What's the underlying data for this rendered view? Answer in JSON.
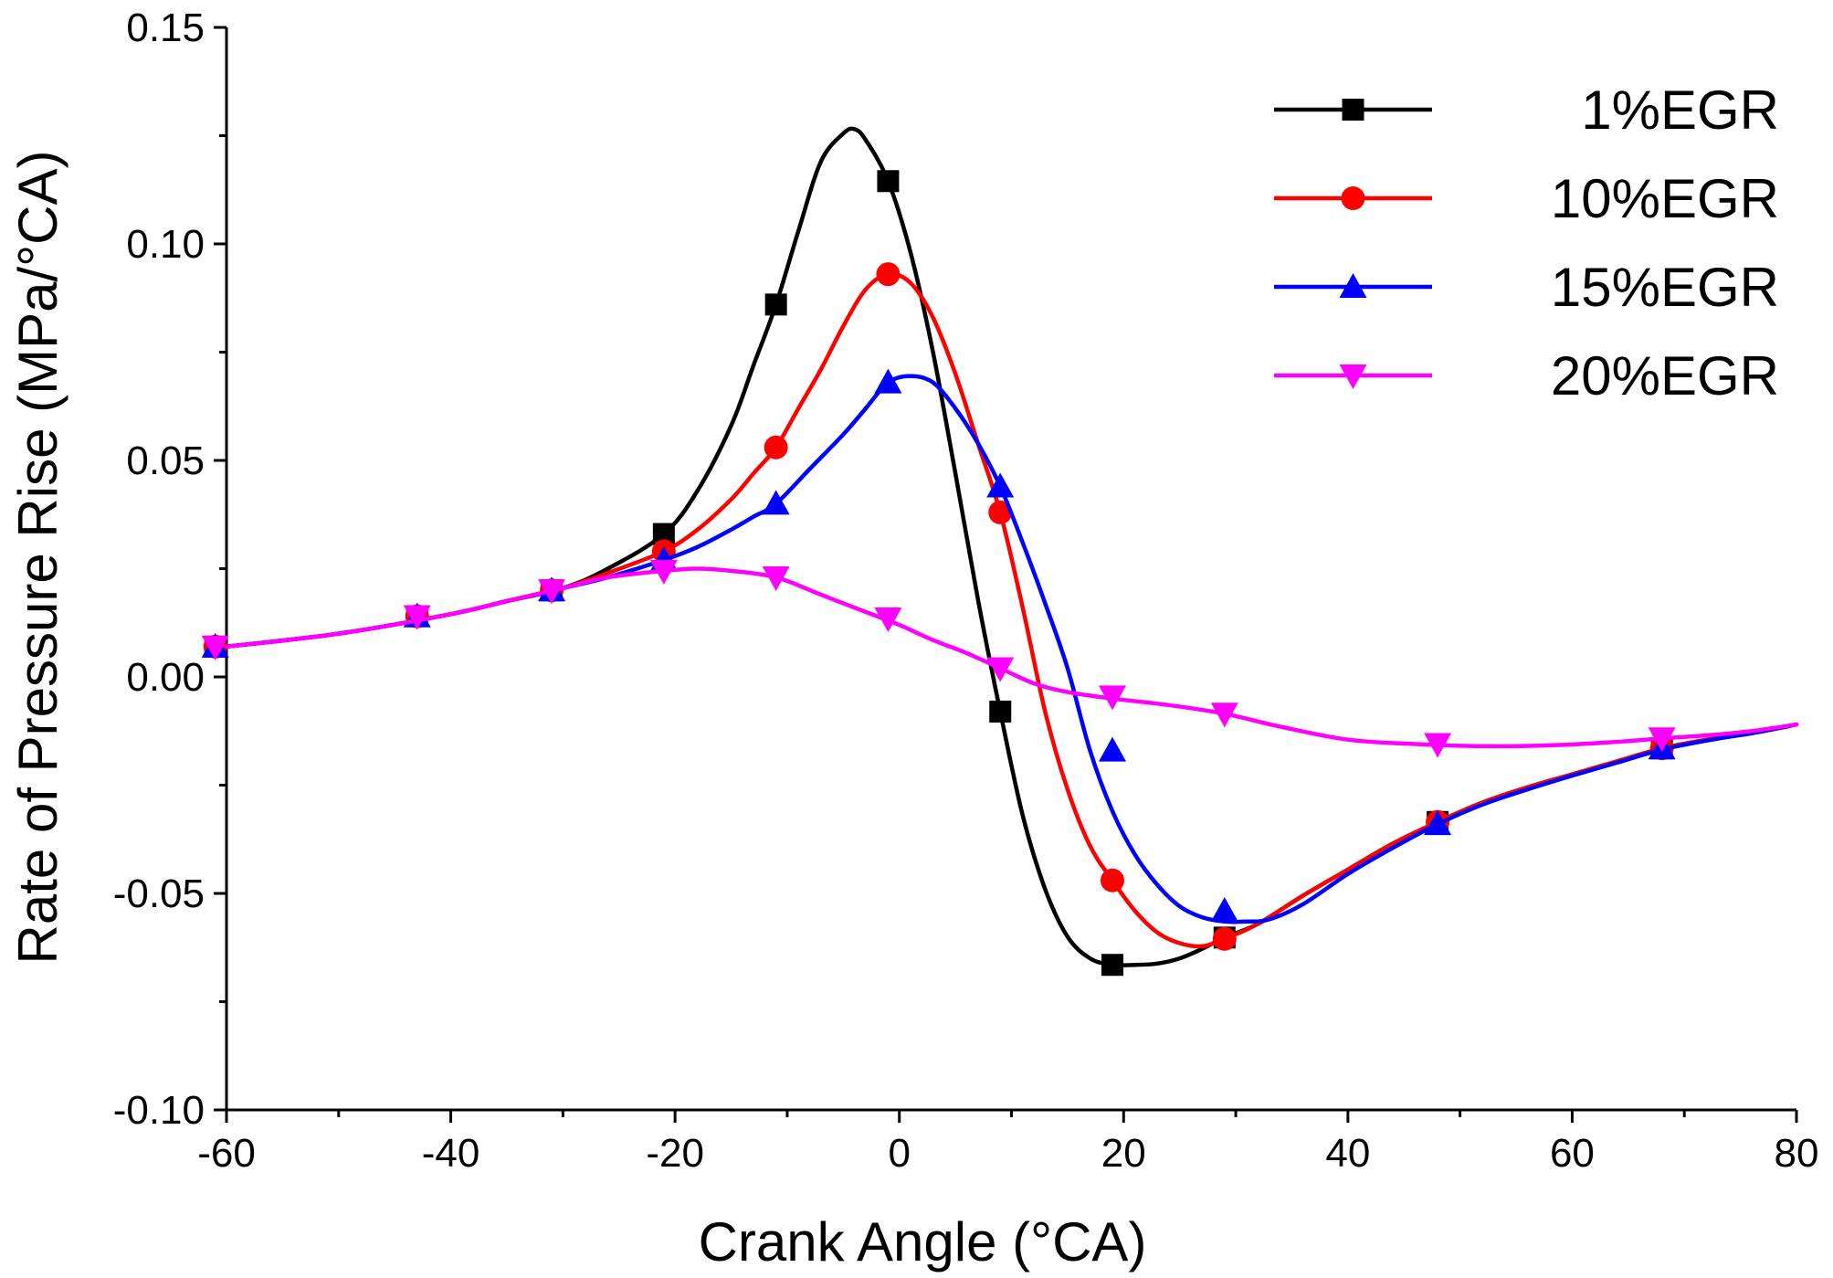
{
  "chart_data": {
    "type": "line",
    "title": "",
    "xlabel": "Crank Angle (°CA)",
    "ylabel": "Rate of Pressure Rise (MPa/°CA)",
    "xlim": [
      -60,
      80
    ],
    "ylim": [
      -0.1,
      0.15
    ],
    "x_ticks": [
      -60,
      -40,
      -20,
      0,
      20,
      40,
      60,
      80
    ],
    "x_tick_labels": [
      "-60",
      "-40",
      "-20",
      "0",
      "20",
      "40",
      "60",
      "80"
    ],
    "y_ticks": [
      -0.1,
      -0.05,
      0.0,
      0.05,
      0.1,
      0.15
    ],
    "y_tick_labels": [
      "-0.10",
      "-0.05",
      "0.00",
      "0.05",
      "0.10",
      "0.15"
    ],
    "grid": false,
    "legend_position": "top-right",
    "series": [
      {
        "name": "1%EGR",
        "color": "#000000",
        "marker": "square",
        "x": [
          -60,
          -50,
          -40,
          -35,
          -30,
          -26,
          -21,
          -18,
          -15,
          -13,
          -11,
          -9,
          -7,
          -5,
          -4,
          -3,
          -1,
          1,
          3,
          5,
          7,
          9,
          11,
          13,
          15,
          17,
          19,
          21,
          23,
          25,
          27,
          29,
          32,
          36,
          40,
          44,
          48,
          52,
          56,
          60,
          64,
          68,
          72,
          76,
          80
        ],
        "y": [
          0.007,
          0.01,
          0.0145,
          0.0175,
          0.0205,
          0.025,
          0.033,
          0.043,
          0.058,
          0.072,
          0.086,
          0.103,
          0.119,
          0.1255,
          0.1265,
          0.124,
          0.1145,
          0.098,
          0.075,
          0.047,
          0.018,
          -0.008,
          -0.032,
          -0.049,
          -0.06,
          -0.065,
          -0.0665,
          -0.0665,
          -0.0662,
          -0.065,
          -0.0628,
          -0.0602,
          -0.057,
          -0.0505,
          -0.0445,
          -0.0385,
          -0.0335,
          -0.029,
          -0.0255,
          -0.0225,
          -0.0195,
          -0.0165,
          -0.0145,
          -0.013,
          -0.011
        ],
        "marker_x": [
          -61,
          -43,
          -31,
          -21,
          -11,
          -1,
          9,
          19,
          29,
          48,
          68
        ],
        "marker_y": [
          0.007,
          0.014,
          0.02,
          0.033,
          0.086,
          0.1145,
          -0.008,
          -0.0665,
          -0.0602,
          -0.0335,
          -0.0165
        ]
      },
      {
        "name": "10%EGR",
        "color": "#ff0000",
        "marker": "circle",
        "x": [
          -60,
          -50,
          -40,
          -35,
          -30,
          -26,
          -21,
          -18,
          -15,
          -13,
          -11,
          -9,
          -7,
          -5,
          -3,
          -1,
          1,
          3,
          5,
          7,
          9,
          11,
          13,
          15,
          17,
          19,
          21,
          23,
          25,
          27,
          29,
          32,
          36,
          40,
          44,
          48,
          52,
          56,
          60,
          64,
          68,
          72,
          76,
          80
        ],
        "y": [
          0.007,
          0.01,
          0.0145,
          0.0175,
          0.0205,
          0.024,
          0.029,
          0.034,
          0.041,
          0.047,
          0.053,
          0.062,
          0.071,
          0.081,
          0.0895,
          0.093,
          0.091,
          0.083,
          0.07,
          0.054,
          0.038,
          0.016,
          -0.008,
          -0.026,
          -0.039,
          -0.047,
          -0.054,
          -0.059,
          -0.0615,
          -0.0622,
          -0.0605,
          -0.057,
          -0.0505,
          -0.0445,
          -0.0385,
          -0.0335,
          -0.029,
          -0.0255,
          -0.0225,
          -0.0195,
          -0.0165,
          -0.0145,
          -0.013,
          -0.011
        ],
        "marker_x": [
          -61,
          -43,
          -31,
          -21,
          -11,
          -1,
          9,
          19,
          29,
          48,
          68
        ],
        "marker_y": [
          0.007,
          0.014,
          0.02,
          0.029,
          0.053,
          0.093,
          0.038,
          -0.047,
          -0.0605,
          -0.0335,
          -0.0165
        ]
      },
      {
        "name": "15%EGR",
        "color": "#0000ff",
        "marker": "triangle-up",
        "x": [
          -60,
          -50,
          -40,
          -35,
          -30,
          -26,
          -21,
          -18,
          -15,
          -13,
          -11,
          -8,
          -5,
          -3,
          -1,
          1,
          3,
          5,
          7,
          9,
          11,
          13,
          15,
          17,
          19,
          21,
          23,
          25,
          27,
          29,
          31,
          33,
          36,
          40,
          44,
          48,
          52,
          56,
          60,
          64,
          68,
          72,
          76,
          80
        ],
        "y": [
          0.007,
          0.01,
          0.0145,
          0.0175,
          0.0205,
          0.023,
          0.027,
          0.03,
          0.034,
          0.037,
          0.04,
          0.048,
          0.056,
          0.062,
          0.068,
          0.0695,
          0.068,
          0.062,
          0.054,
          0.044,
          0.031,
          0.017,
          0.002,
          -0.017,
          -0.031,
          -0.041,
          -0.048,
          -0.053,
          -0.0555,
          -0.0565,
          -0.0565,
          -0.056,
          -0.0525,
          -0.0455,
          -0.0395,
          -0.034,
          -0.0295,
          -0.026,
          -0.0228,
          -0.0198,
          -0.0168,
          -0.0147,
          -0.013,
          -0.011
        ],
        "marker_x": [
          -61,
          -43,
          -31,
          -21,
          -11,
          -1,
          9,
          19,
          29,
          48,
          68
        ],
        "marker_y": [
          0.007,
          0.014,
          0.02,
          0.027,
          0.04,
          0.068,
          0.044,
          -0.017,
          -0.054,
          -0.034,
          -0.0165
        ]
      },
      {
        "name": "20%EGR",
        "color": "#ff00ff",
        "marker": "triangle-down",
        "x": [
          -60,
          -50,
          -40,
          -35,
          -30,
          -26,
          -21,
          -18,
          -15,
          -11,
          -7,
          -3,
          0,
          3,
          6,
          9,
          12,
          15,
          19,
          24,
          29,
          34,
          40,
          46,
          52,
          58,
          64,
          68,
          72,
          76,
          80
        ],
        "y": [
          0.007,
          0.01,
          0.0145,
          0.0175,
          0.0205,
          0.023,
          0.0245,
          0.025,
          0.0245,
          0.023,
          0.019,
          0.015,
          0.012,
          0.0085,
          0.0055,
          0.002,
          -0.0015,
          -0.0035,
          -0.005,
          -0.0065,
          -0.0085,
          -0.0115,
          -0.0145,
          -0.0155,
          -0.016,
          -0.0158,
          -0.015,
          -0.0142,
          -0.0135,
          -0.0125,
          -0.011
        ],
        "marker_x": [
          -61,
          -43,
          -31,
          -21,
          -11,
          -1,
          9,
          19,
          29,
          48,
          68
        ],
        "marker_y": [
          0.007,
          0.014,
          0.02,
          0.0245,
          0.023,
          0.0135,
          0.002,
          -0.0045,
          -0.0085,
          -0.0155,
          -0.0142
        ]
      }
    ]
  }
}
